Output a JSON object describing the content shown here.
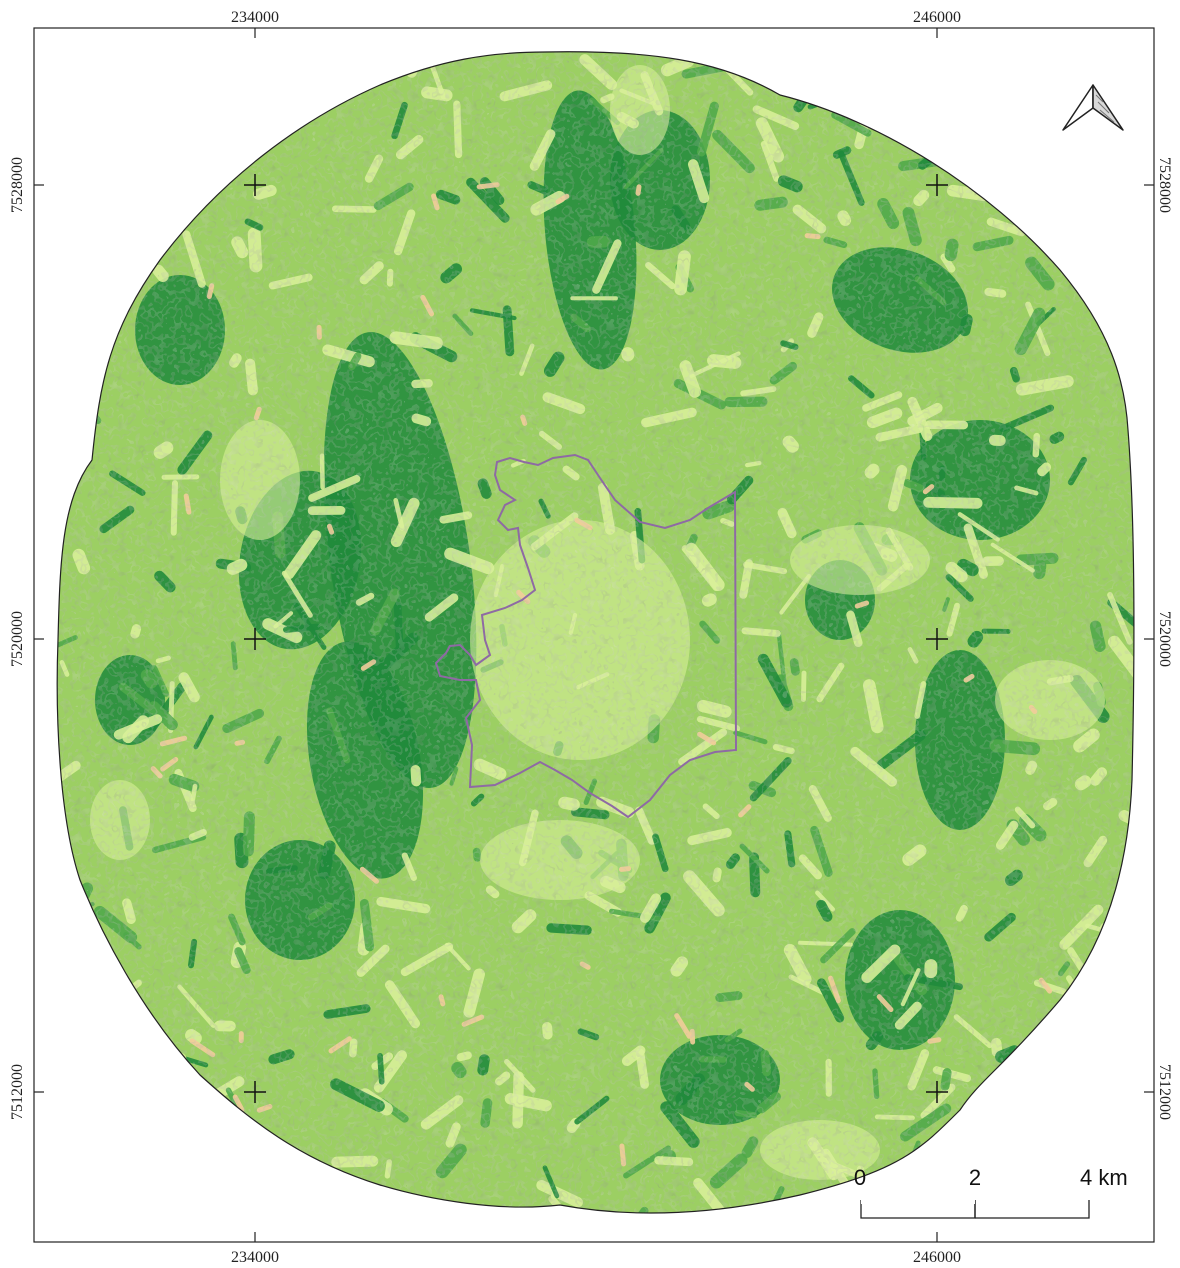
{
  "map": {
    "grid": {
      "x_ticks": [
        "234000",
        "246000"
      ],
      "y_ticks": [
        "7528000",
        "7520000",
        "7512000"
      ]
    },
    "scale_bar": {
      "labels": [
        "0",
        "2",
        "4 km"
      ]
    },
    "north_arrow": {
      "icon": "north-arrow-icon"
    },
    "legend_colors": {
      "class_1": "#d9f09a",
      "class_2": "#9ccf63",
      "class_3": "#4ea94a",
      "class_4": "#1f8a3b",
      "class_5": "#f2cc9a",
      "boundary": "#8e6aa4",
      "frame": "#222222"
    }
  }
}
